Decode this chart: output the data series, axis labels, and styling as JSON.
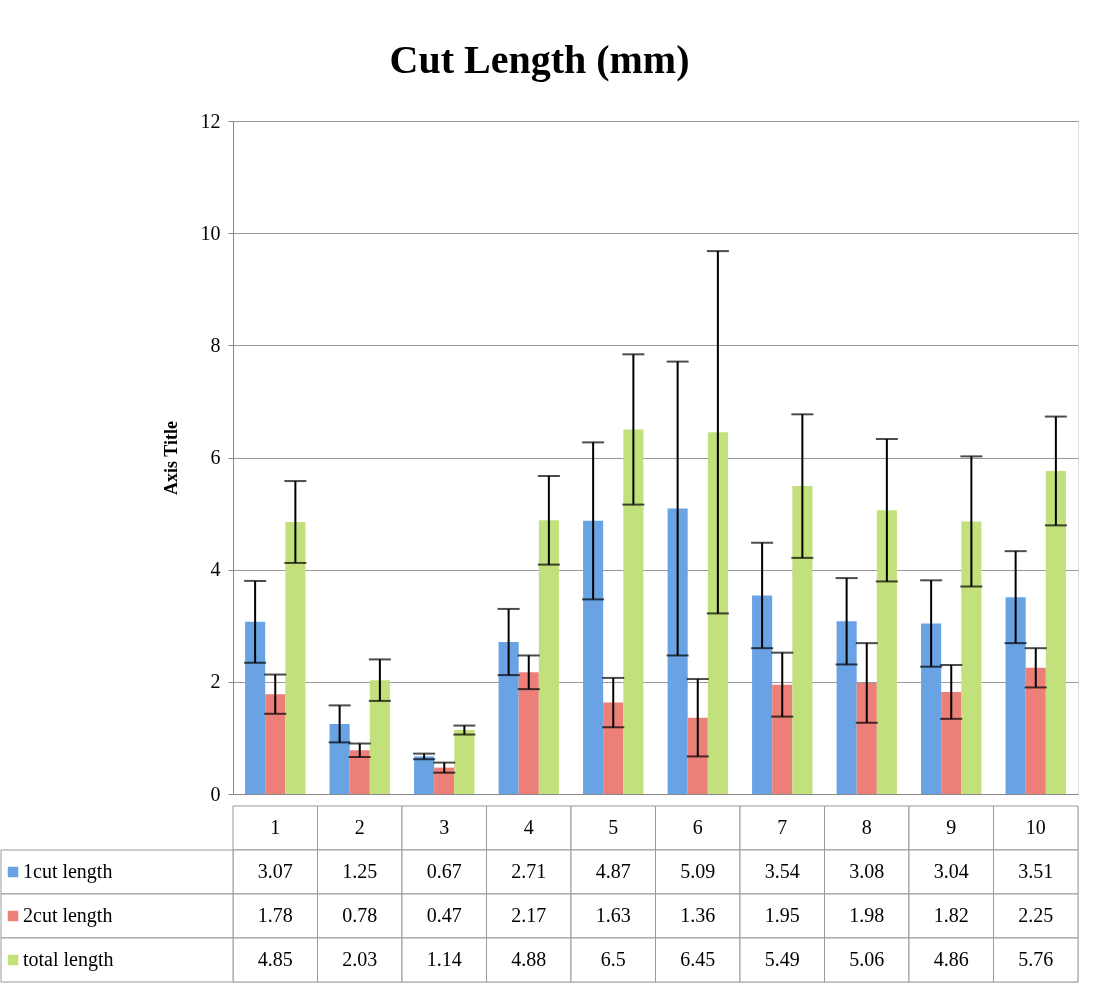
{
  "chart_data": {
    "type": "bar",
    "title": "Cut Length (mm)",
    "ylabel": "Axis Title",
    "categories": [
      "1",
      "2",
      "3",
      "4",
      "5",
      "6",
      "7",
      "8",
      "9",
      "10"
    ],
    "series": [
      {
        "name": "1cut length",
        "color": "#6aa3e3",
        "values": [
          3.07,
          1.25,
          0.67,
          2.71,
          4.87,
          5.09,
          3.54,
          3.08,
          3.04,
          3.51
        ],
        "errors": [
          0.73,
          0.33,
          0.05,
          0.59,
          1.4,
          2.62,
          0.94,
          0.77,
          0.77,
          0.82
        ]
      },
      {
        "name": "2cut length",
        "color": "#ec7f78",
        "values": [
          1.78,
          0.78,
          0.47,
          2.17,
          1.63,
          1.36,
          1.95,
          1.98,
          1.82,
          2.25
        ],
        "errors": [
          0.35,
          0.12,
          0.09,
          0.3,
          0.44,
          0.69,
          0.57,
          0.71,
          0.48,
          0.35
        ]
      },
      {
        "name": "total length",
        "color": "#c2e07c",
        "values": [
          4.85,
          2.03,
          1.14,
          4.88,
          6.5,
          6.45,
          5.49,
          5.06,
          4.86,
          5.76
        ],
        "errors": [
          0.73,
          0.37,
          0.08,
          0.79,
          1.34,
          3.23,
          1.28,
          1.27,
          1.16,
          0.97
        ]
      }
    ],
    "ylim": [
      0,
      12
    ],
    "yticks": [
      0,
      2,
      4,
      6,
      8,
      10,
      12
    ],
    "grid": "y",
    "legend": "bottom",
    "data_labels": true
  }
}
